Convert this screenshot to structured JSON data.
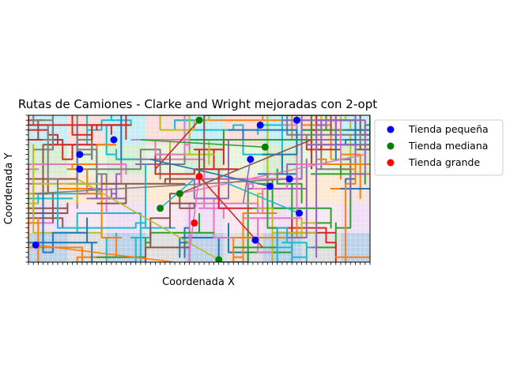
{
  "chart_data": {
    "type": "scatter",
    "title": "Rutas de Camiones - Clarke and Wright mejoradas con 2-opt",
    "xlabel": "Coordenada X",
    "ylabel": "Coordenada Y",
    "xlim": [
      0,
      70
    ],
    "ylim": [
      0,
      30
    ],
    "tick_labels_shown": false,
    "grid": true,
    "legend_position": "upper-right-outside",
    "series": [
      {
        "name": "Tienda pequeña",
        "color": "#0000ff",
        "points": [
          [
            1.5,
            3.5
          ],
          [
            10.5,
            19.0
          ],
          [
            10.5,
            22.0
          ],
          [
            17.5,
            25.0
          ],
          [
            45.5,
            21.0
          ],
          [
            47.5,
            28.0
          ],
          [
            49.5,
            15.5
          ],
          [
            46.5,
            4.5
          ],
          [
            55.0,
            29.0
          ],
          [
            53.5,
            17.0
          ],
          [
            55.5,
            10.0
          ]
        ]
      },
      {
        "name": "Tienda mediana",
        "color": "#008000",
        "points": [
          [
            35.0,
            29.0
          ],
          [
            48.5,
            23.5
          ],
          [
            31.0,
            14.0
          ],
          [
            27.0,
            11.0
          ],
          [
            39.0,
            0.5
          ]
        ]
      },
      {
        "name": "Tienda grande",
        "color": "#ff0000",
        "points": [
          [
            35.0,
            17.5
          ],
          [
            34.0,
            8.0
          ]
        ]
      }
    ],
    "region_colors": [
      "#8fb3d9",
      "#f4c6c2",
      "#b9e3b0",
      "#ffd8b0",
      "#e6c8f0",
      "#c8c8c8",
      "#9fe3ec",
      "#d6ecc6",
      "#e8d2c8",
      "#f2d6e6"
    ],
    "route_colors": [
      "#1f77b4",
      "#ff7f0e",
      "#2ca02c",
      "#d62728",
      "#9467bd",
      "#8c564b",
      "#e377c2",
      "#7f7f7f",
      "#bcbd22",
      "#17becf"
    ]
  }
}
